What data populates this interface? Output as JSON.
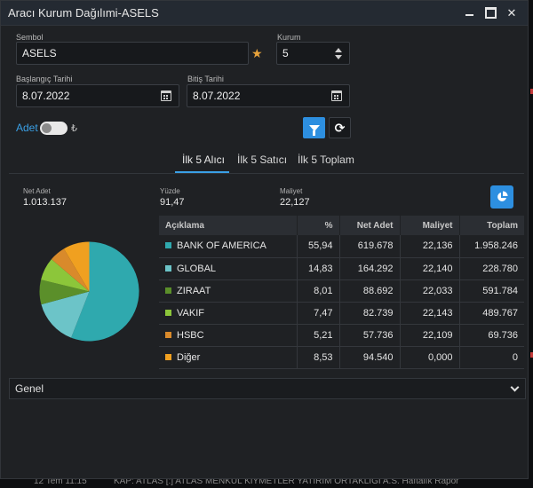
{
  "window": {
    "title": "Aracı Kurum Dağılımi-ASELS"
  },
  "form": {
    "symbol_label": "Sembol",
    "symbol_value": "ASELS",
    "institution_label": "Kurum",
    "institution_value": "5",
    "start_label": "Başlangıç Tarihi",
    "start_value": "8.07.2022",
    "end_label": "Bitiş Tarihi",
    "end_value": "8.07.2022",
    "adet_label": "Adet",
    "currency_symbol": "₺"
  },
  "tabs": [
    {
      "label": "İlk 5 Alıcı",
      "active": true
    },
    {
      "label": "İlk 5 Satıcı",
      "active": false
    },
    {
      "label": "İlk 5 Toplam",
      "active": false
    }
  ],
  "stats": {
    "net_adet_label": "Net Adet",
    "net_adet_value": "1.013.137",
    "yuzde_label": "Yüzde",
    "yuzde_value": "91,47",
    "maliyet_label": "Maliyet",
    "maliyet_value": "22,127"
  },
  "table": {
    "headers": [
      "Açıklama",
      "%",
      "Net Adet",
      "Maliyet",
      "Toplam"
    ],
    "rows": [
      {
        "name": "BANK OF AMERICA",
        "pct": "55,94",
        "net": "619.678",
        "cost": "22,136",
        "total": "1.958.246",
        "color": "#2fa9ae"
      },
      {
        "name": "GLOBAL",
        "pct": "14,83",
        "net": "164.292",
        "cost": "22,140",
        "total": "228.780",
        "color": "#6cc4c8"
      },
      {
        "name": "ZIRAAT",
        "pct": "8,01",
        "net": "88.692",
        "cost": "22,033",
        "total": "591.784",
        "color": "#5b8f2a"
      },
      {
        "name": "VAKIF",
        "pct": "7,47",
        "net": "82.739",
        "cost": "22,143",
        "total": "489.767",
        "color": "#8cc63a"
      },
      {
        "name": "HSBC",
        "pct": "5,21",
        "net": "57.736",
        "cost": "22,109",
        "total": "69.736",
        "color": "#d98a2b"
      },
      {
        "name": "Diğer",
        "pct": "8,53",
        "net": "94.540",
        "cost": "0,000",
        "total": "0",
        "color": "#f0a020"
      }
    ]
  },
  "chart_data": {
    "type": "pie",
    "categories": [
      "BANK OF AMERICA",
      "GLOBAL",
      "ZIRAAT",
      "VAKIF",
      "HSBC",
      "Diğer"
    ],
    "values": [
      55.94,
      14.83,
      8.01,
      7.47,
      5.21,
      8.53
    ],
    "colors": [
      "#2fa9ae",
      "#6cc4c8",
      "#5b8f2a",
      "#8cc63a",
      "#d98a2b",
      "#f0a020"
    ]
  },
  "footer": {
    "group_value": "Genel"
  },
  "background": {
    "news_time": "12 Tem 11:15",
    "news_text": "KAP: ATLAS [:] ATLAS MENKUL KIYMETLER YATIRIM ORTAKLIGI A.S. Haftalık Rapor"
  },
  "icons": {
    "star": "star-icon",
    "calendar": "calendar-icon",
    "spinner": "spinner-icon",
    "filter": "filter-icon",
    "refresh": "refresh-icon",
    "pie": "pie-chart-icon",
    "chevron": "chevron-down-icon"
  }
}
